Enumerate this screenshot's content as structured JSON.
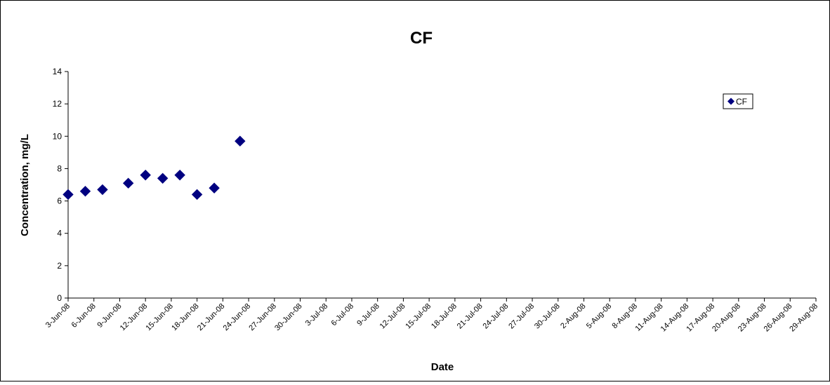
{
  "chart_data": {
    "type": "scatter",
    "title": "CF",
    "xlabel": "Date",
    "ylabel": "Concentration, mg/L",
    "ylim": [
      0,
      14
    ],
    "y_ticks": [
      "0",
      "2",
      "4",
      "6",
      "8",
      "10",
      "12",
      "14"
    ],
    "x_range": [
      "2008-06-03",
      "2008-08-29"
    ],
    "x_ticks": [
      "3-Jun-08",
      "6-Jun-08",
      "9-Jun-08",
      "12-Jun-08",
      "15-Jun-08",
      "18-Jun-08",
      "21-Jun-08",
      "24-Jun-08",
      "27-Jun-08",
      "30-Jun-08",
      "3-Jul-08",
      "6-Jul-08",
      "9-Jul-08",
      "12-Jul-08",
      "15-Jul-08",
      "18-Jul-08",
      "21-Jul-08",
      "24-Jul-08",
      "27-Jul-08",
      "30-Jul-08",
      "2-Aug-08",
      "5-Aug-08",
      "8-Aug-08",
      "11-Aug-08",
      "14-Aug-08",
      "17-Aug-08",
      "20-Aug-08",
      "23-Aug-08",
      "26-Aug-08",
      "29-Aug-08"
    ],
    "grid": false,
    "legend_position": "top-right",
    "series": [
      {
        "name": "CF",
        "color": "#000080",
        "marker": "diamond",
        "points": [
          {
            "x": "2008-06-03",
            "y": 6.4
          },
          {
            "x": "2008-06-05",
            "y": 6.6
          },
          {
            "x": "2008-06-07",
            "y": 6.7
          },
          {
            "x": "2008-06-10",
            "y": 7.1
          },
          {
            "x": "2008-06-12",
            "y": 7.6
          },
          {
            "x": "2008-06-14",
            "y": 7.4
          },
          {
            "x": "2008-06-16",
            "y": 7.6
          },
          {
            "x": "2008-06-18",
            "y": 6.4
          },
          {
            "x": "2008-06-20",
            "y": 6.8
          },
          {
            "x": "2008-06-23",
            "y": 9.7
          }
        ]
      }
    ]
  }
}
